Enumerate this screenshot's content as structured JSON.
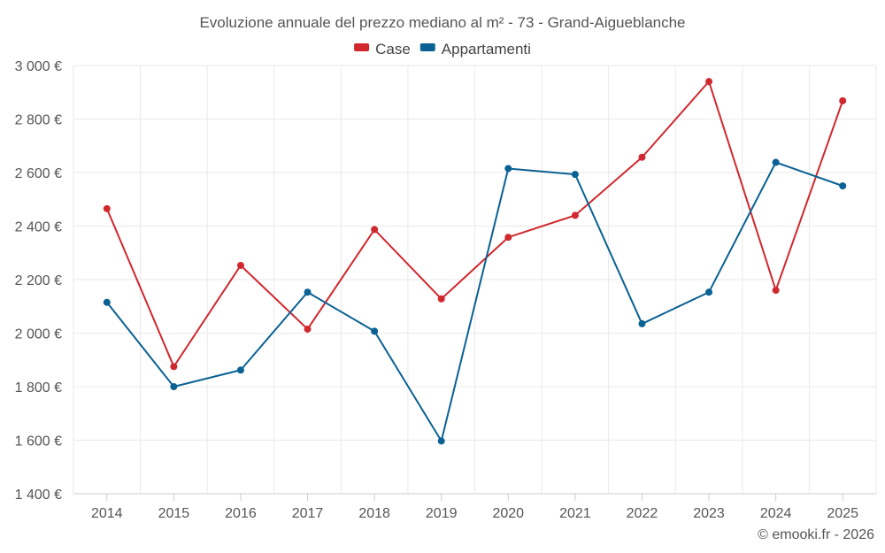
{
  "chart_data": {
    "type": "line",
    "title": "Evoluzione annuale del prezzo mediano al m² - 73 - Grand-Aigueblanche",
    "xlabel": "",
    "ylabel": "",
    "categories": [
      "2014",
      "2015",
      "2016",
      "2017",
      "2018",
      "2019",
      "2020",
      "2021",
      "2022",
      "2023",
      "2024",
      "2025"
    ],
    "ylim": [
      1400,
      3000
    ],
    "yticks": [
      1400,
      1600,
      1800,
      2000,
      2200,
      2400,
      2600,
      2800,
      3000
    ],
    "ytick_labels": [
      "1 400 €",
      "1 600 €",
      "1 800 €",
      "2 000 €",
      "2 200 €",
      "2 400 €",
      "2 600 €",
      "2 800 €",
      "3 000 €"
    ],
    "grid": true,
    "legend_position": "top-center",
    "series": [
      {
        "name": "Case",
        "color": "#d0282e",
        "values": [
          2465,
          1875,
          2253,
          2015,
          2387,
          2128,
          2358,
          2440,
          2657,
          2940,
          2160,
          2868
        ]
      },
      {
        "name": "Appartamenti",
        "color": "#0a6193",
        "values": [
          2115,
          1800,
          1862,
          2153,
          2007,
          1597,
          2615,
          2593,
          2035,
          2153,
          2638,
          2550
        ]
      }
    ],
    "credit": "© emooki.fr - 2026"
  }
}
